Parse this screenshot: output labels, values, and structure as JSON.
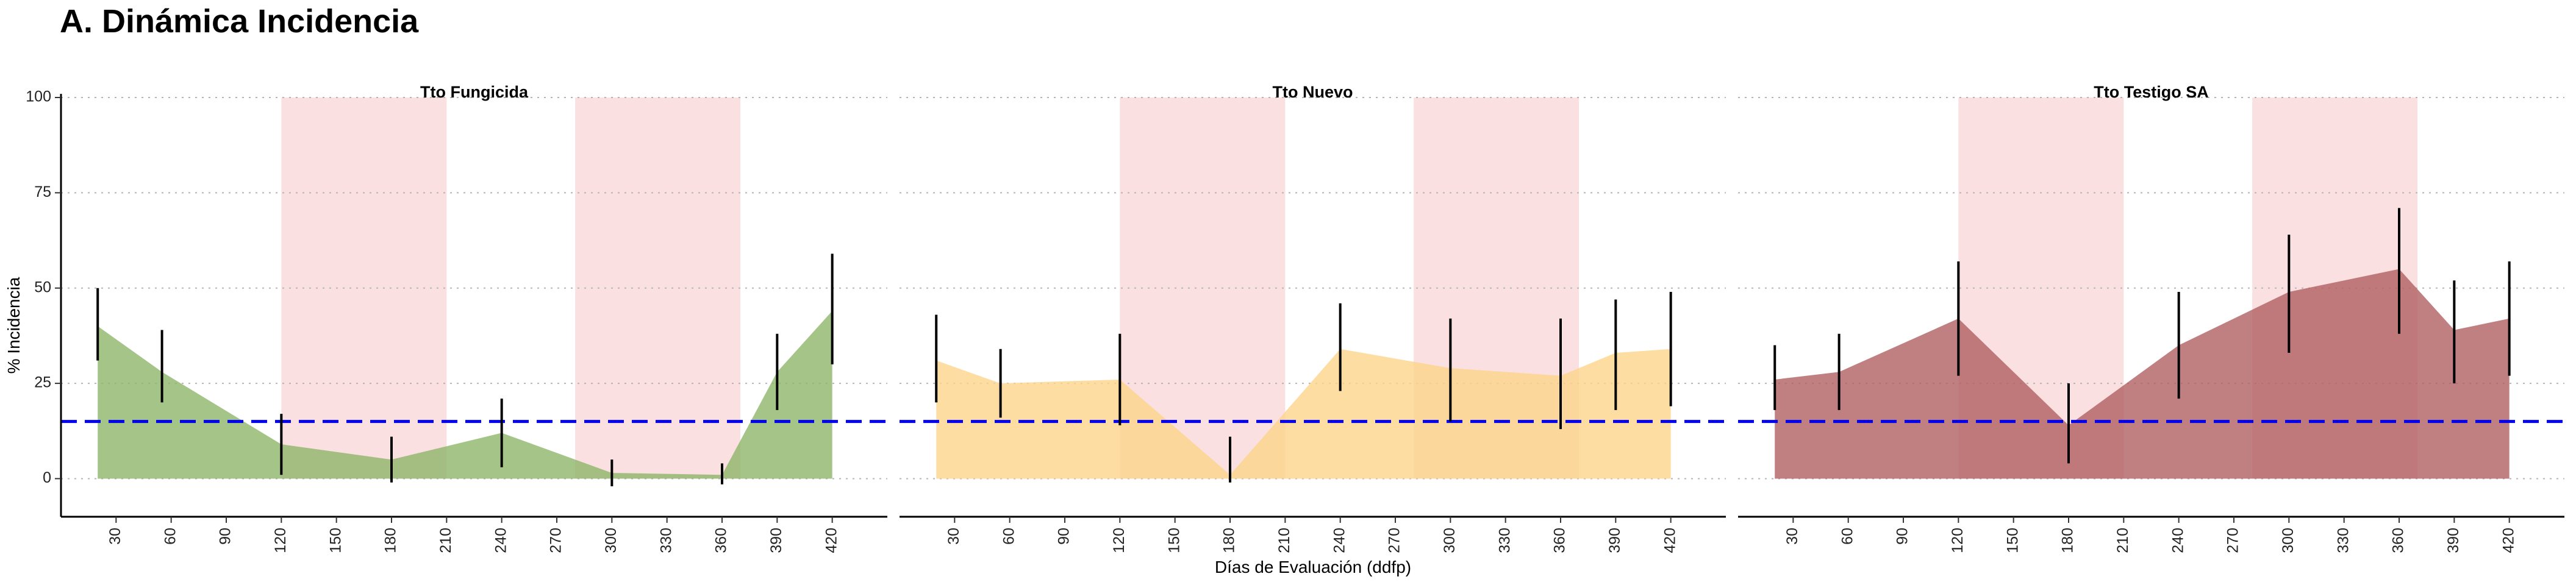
{
  "title": "A. Dinámica Incidencia",
  "chart_data": {
    "type": "area",
    "title": "A. Dinámica Incidencia",
    "xlabel": "Días de Evaluación (ddfp)",
    "ylabel": "% Incidencia",
    "xlim": [
      0,
      450
    ],
    "ylim": [
      -10,
      100
    ],
    "x_ticks": [
      30,
      60,
      90,
      120,
      150,
      180,
      210,
      240,
      270,
      300,
      330,
      360,
      390,
      420
    ],
    "y_ticks": [
      0,
      25,
      50,
      75,
      100
    ],
    "threshold": {
      "value": 15,
      "color": "#0000ee",
      "style": "dashed"
    },
    "shaded_periods": [
      [
        120,
        210
      ],
      [
        280,
        370
      ]
    ],
    "shade_color": "#f5c6c9",
    "grid": "horizontal dotted",
    "facets": [
      {
        "name": "Tto Fungicida",
        "color": "#8fb56a",
        "x": [
          20,
          55,
          120,
          180,
          240,
          300,
          360,
          390,
          420
        ],
        "y": [
          40,
          28,
          9,
          5,
          12,
          1.5,
          1,
          28,
          44
        ],
        "err_low": [
          31,
          20,
          1,
          -1,
          3,
          -2,
          -1.5,
          18,
          30
        ],
        "err_high": [
          50,
          39,
          17,
          11,
          21,
          5,
          4,
          38,
          59
        ]
      },
      {
        "name": "Tto Nuevo",
        "color": "#fdd58b",
        "x": [
          20,
          55,
          120,
          180,
          240,
          300,
          360,
          390,
          420
        ],
        "y": [
          31,
          25,
          26,
          1,
          34,
          29,
          27,
          33,
          34
        ],
        "err_low": [
          20,
          16,
          14,
          -1,
          23,
          15,
          13,
          18,
          19
        ],
        "err_high": [
          43,
          34,
          38,
          11,
          46,
          42,
          42,
          47,
          49
        ]
      },
      {
        "name": "Tto Testigo SA",
        "color": "#b05f62",
        "x": [
          20,
          55,
          120,
          180,
          240,
          300,
          360,
          390,
          420
        ],
        "y": [
          26,
          28,
          42,
          14,
          35,
          49,
          55,
          39,
          42
        ],
        "err_low": [
          18,
          18,
          27,
          4,
          21,
          33,
          38,
          25,
          27
        ],
        "err_high": [
          35,
          38,
          57,
          25,
          49,
          64,
          71,
          52,
          57
        ]
      }
    ]
  }
}
